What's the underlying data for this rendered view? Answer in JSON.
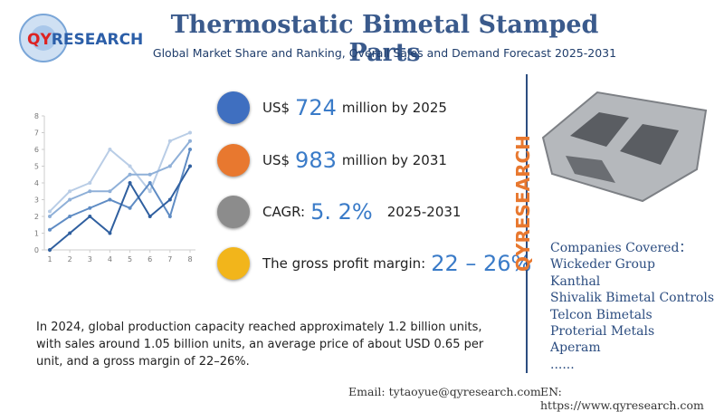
{
  "header": {
    "logo_a": "QY",
    "logo_b": "RESEARCH",
    "title": "Thermostatic Bimetal Stamped Parts",
    "subtitle": "Global Market Share and Ranking, Overall Sales and Demand Forecast 2025-2031"
  },
  "stats": [
    {
      "prefix": "US$",
      "value": "724",
      "suffix": "million by 2025"
    },
    {
      "prefix": "US$",
      "value": "983",
      "suffix": "million by 2031"
    },
    {
      "prefix": "CAGR:",
      "value": "5. 2%",
      "suffix": "2025-2031"
    },
    {
      "prefix": "The gross profit margin:",
      "value": "22 – 26%",
      "suffix": ""
    }
  ],
  "paragraph": "In 2024, global production capacity reached approximately 1.2 billion units, with sales around 1.05 billion units, an average price of about USD 0.65 per unit, and a gross margin of 22–26%.",
  "watermark": "QYRESEARCH",
  "companies": {
    "heading": "Companies Covered：",
    "items": [
      "Wickeder Group",
      "Kanthal",
      "Shivalik Bimetal Controls",
      "Telcon Bimetals",
      "Proterial Metals",
      "Aperam",
      "......"
    ]
  },
  "footer": {
    "email": "Email:  tytaoyue@qyresearch.com",
    "web": "EN: https://www.qyresearch.com"
  },
  "chart_data": {
    "type": "line",
    "x": [
      1,
      2,
      3,
      4,
      5,
      6,
      7,
      8
    ],
    "xlim": [
      1,
      8
    ],
    "xticks": [
      1,
      2,
      3,
      4,
      5,
      6,
      7,
      8
    ],
    "ylim": [
      0,
      8
    ],
    "yticks": [
      0,
      1,
      2,
      3,
      4,
      5,
      6,
      7,
      8
    ],
    "series": [
      {
        "color": "#b9cde6",
        "values": [
          2.3,
          3.5,
          4,
          6,
          5,
          3.5,
          6.5,
          7
        ]
      },
      {
        "color": "#8fb0d8",
        "values": [
          2,
          3,
          3.5,
          3.5,
          4.5,
          4.5,
          5,
          6.5
        ]
      },
      {
        "color": "#5f8cc4",
        "values": [
          1.2,
          2,
          2.5,
          3,
          2.5,
          4,
          2,
          6
        ]
      },
      {
        "color": "#2f5f9f",
        "values": [
          0,
          1,
          2,
          1,
          4,
          2,
          3,
          5
        ]
      }
    ]
  }
}
